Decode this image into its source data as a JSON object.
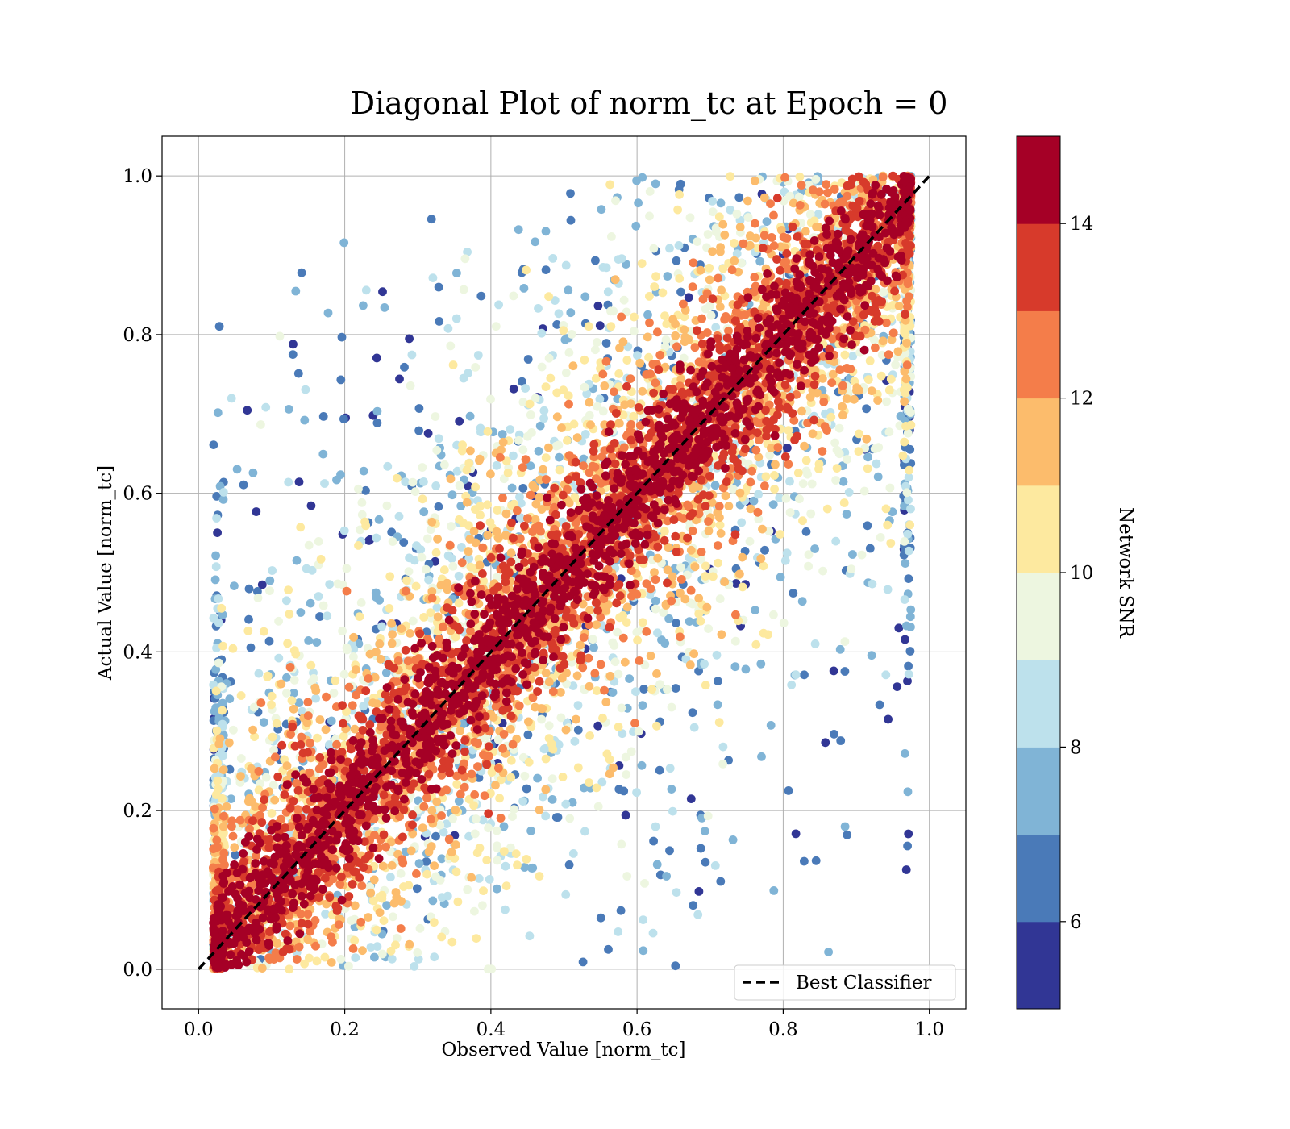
{
  "chart_data": {
    "type": "scatter",
    "title": "Diagonal Plot of norm_tc at Epoch = 0",
    "xlabel": "Observed Value [norm_tc]",
    "ylabel": "Actual Value [norm_tc]",
    "xlim": [
      -0.05,
      1.05
    ],
    "ylim": [
      -0.05,
      1.05
    ],
    "xticks": [
      "0.0",
      "0.2",
      "0.4",
      "0.6",
      "0.8",
      "1.0"
    ],
    "yticks": [
      "0.0",
      "0.2",
      "0.4",
      "0.6",
      "0.8",
      "1.0"
    ],
    "grid": true,
    "legend": {
      "location": "lower right",
      "entries": [
        "Best Classifier"
      ]
    },
    "reference_line": {
      "label": "Best Classifier",
      "style": "dashed",
      "color": "#000000",
      "points": [
        [
          0.0,
          0.0
        ],
        [
          1.0,
          1.0
        ]
      ]
    },
    "description_of_points": {
      "relation": "actual ≈ observed with scatter that grows as SNR decreases",
      "core_band_snr": "≥ 14 (dark red)",
      "outer_points_snr": "5–11 (blue to yellow)"
    },
    "colorbar": {
      "label": "Network SNR",
      "range": [
        5,
        15
      ],
      "ticks": [
        "6",
        "8",
        "10",
        "12",
        "14"
      ],
      "tick_values": [
        6,
        8,
        10,
        12,
        14
      ],
      "levels": [
        {
          "from": 5,
          "to": 6,
          "color": "#313695"
        },
        {
          "from": 6,
          "to": 7,
          "color": "#4a7ab8"
        },
        {
          "from": 7,
          "to": 8,
          "color": "#80b4d6"
        },
        {
          "from": 8,
          "to": 9,
          "color": "#bde1ec"
        },
        {
          "from": 9,
          "to": 10,
          "color": "#edf6e0"
        },
        {
          "from": 10,
          "to": 11,
          "color": "#fde99f"
        },
        {
          "from": 11,
          "to": 12,
          "color": "#fcbc6c"
        },
        {
          "from": 12,
          "to": 13,
          "color": "#f47d4a"
        },
        {
          "from": 13,
          "to": 14,
          "color": "#d73a2b"
        },
        {
          "from": 14,
          "to": 15,
          "color": "#a50026"
        }
      ]
    }
  }
}
